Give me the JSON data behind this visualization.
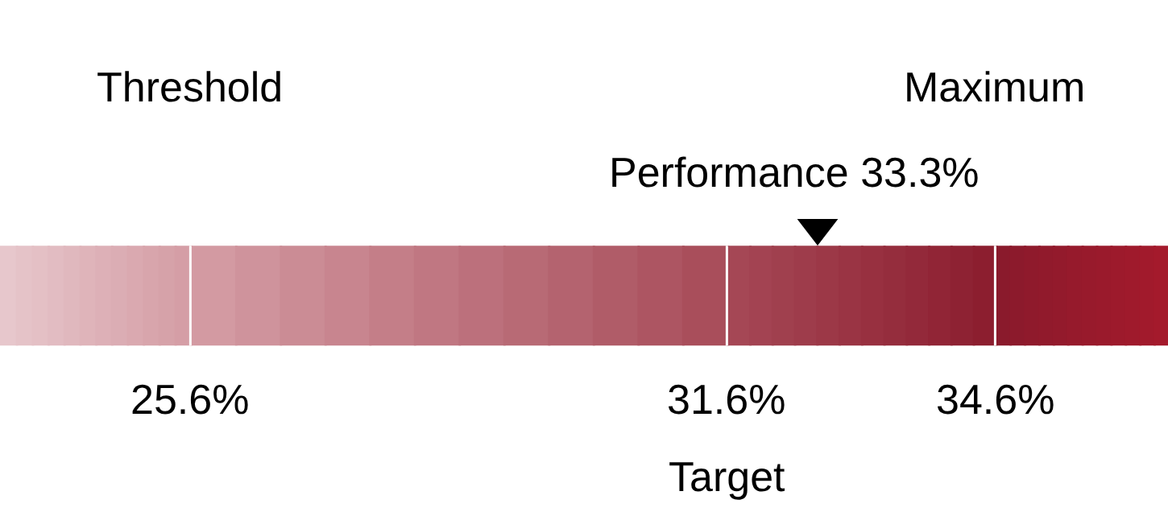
{
  "chart_data": {
    "type": "other",
    "categories": [
      "Threshold",
      "Target",
      "Maximum"
    ],
    "values": [
      25.6,
      31.6,
      34.6
    ],
    "value_labels": [
      "25.6%",
      "31.6%",
      "34.6%"
    ],
    "colors": [
      "#d39aa2",
      "#a54755",
      "#8a1a2c"
    ],
    "annotations": [
      "Performance 33.3%"
    ]
  }
}
